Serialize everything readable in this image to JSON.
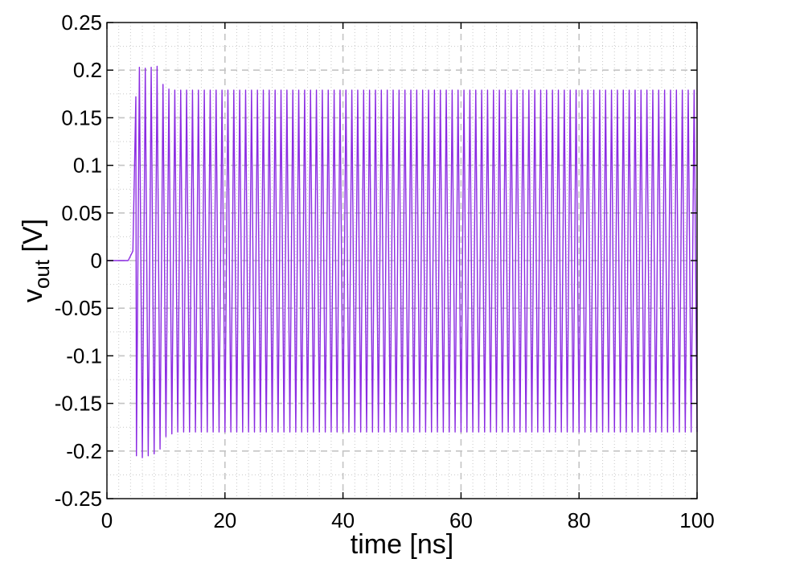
{
  "chart_data": {
    "type": "line",
    "title": "",
    "xlabel": "time [ns]",
    "ylabel_main": "v",
    "ylabel_sub": "out",
    "ylabel_unit": " [V]",
    "xlim": [
      0,
      100
    ],
    "ylim": [
      -0.25,
      0.25
    ],
    "x_ticks": [
      0,
      20,
      40,
      60,
      80,
      100
    ],
    "x_tick_labels": [
      "0",
      "20",
      "40",
      "60",
      "80",
      "100"
    ],
    "y_ticks": [
      -0.25,
      -0.2,
      -0.15,
      -0.1,
      -0.05,
      0,
      0.05,
      0.1,
      0.15,
      0.2,
      0.25
    ],
    "y_tick_labels": [
      "-0.25",
      "-0.2",
      "-0.15",
      "-0.1",
      "-0.05",
      "0",
      "0.05",
      "0.1",
      "0.15",
      "0.2",
      "0.25"
    ],
    "grid": true,
    "minor_grid": true,
    "line_color": "#8b2be2",
    "series": [
      {
        "points": [
          [
            0,
            0
          ],
          [
            3.6,
            0
          ],
          [
            4.4,
            0.01
          ],
          [
            4.9,
            0.172
          ],
          [
            5.0,
            -0.205
          ],
          [
            5.5,
            0.203
          ],
          [
            6.0,
            -0.207
          ],
          [
            6.5,
            0.202
          ],
          [
            7.0,
            -0.205
          ],
          [
            7.5,
            0.203
          ],
          [
            8.0,
            -0.203
          ],
          [
            8.5,
            0.204
          ],
          [
            9.0,
            -0.198
          ],
          [
            9.5,
            0.185
          ],
          [
            10.0,
            -0.185
          ],
          [
            10.5,
            0.18
          ],
          [
            11.0,
            -0.182
          ]
        ],
        "steady_start": 11.0,
        "steady_end": 99.0,
        "steady_period": 1.0,
        "steady_high": 0.179,
        "steady_low": -0.18,
        "end": [
          99.5,
          0.179,
          100.0,
          -0.18
        ]
      }
    ]
  }
}
